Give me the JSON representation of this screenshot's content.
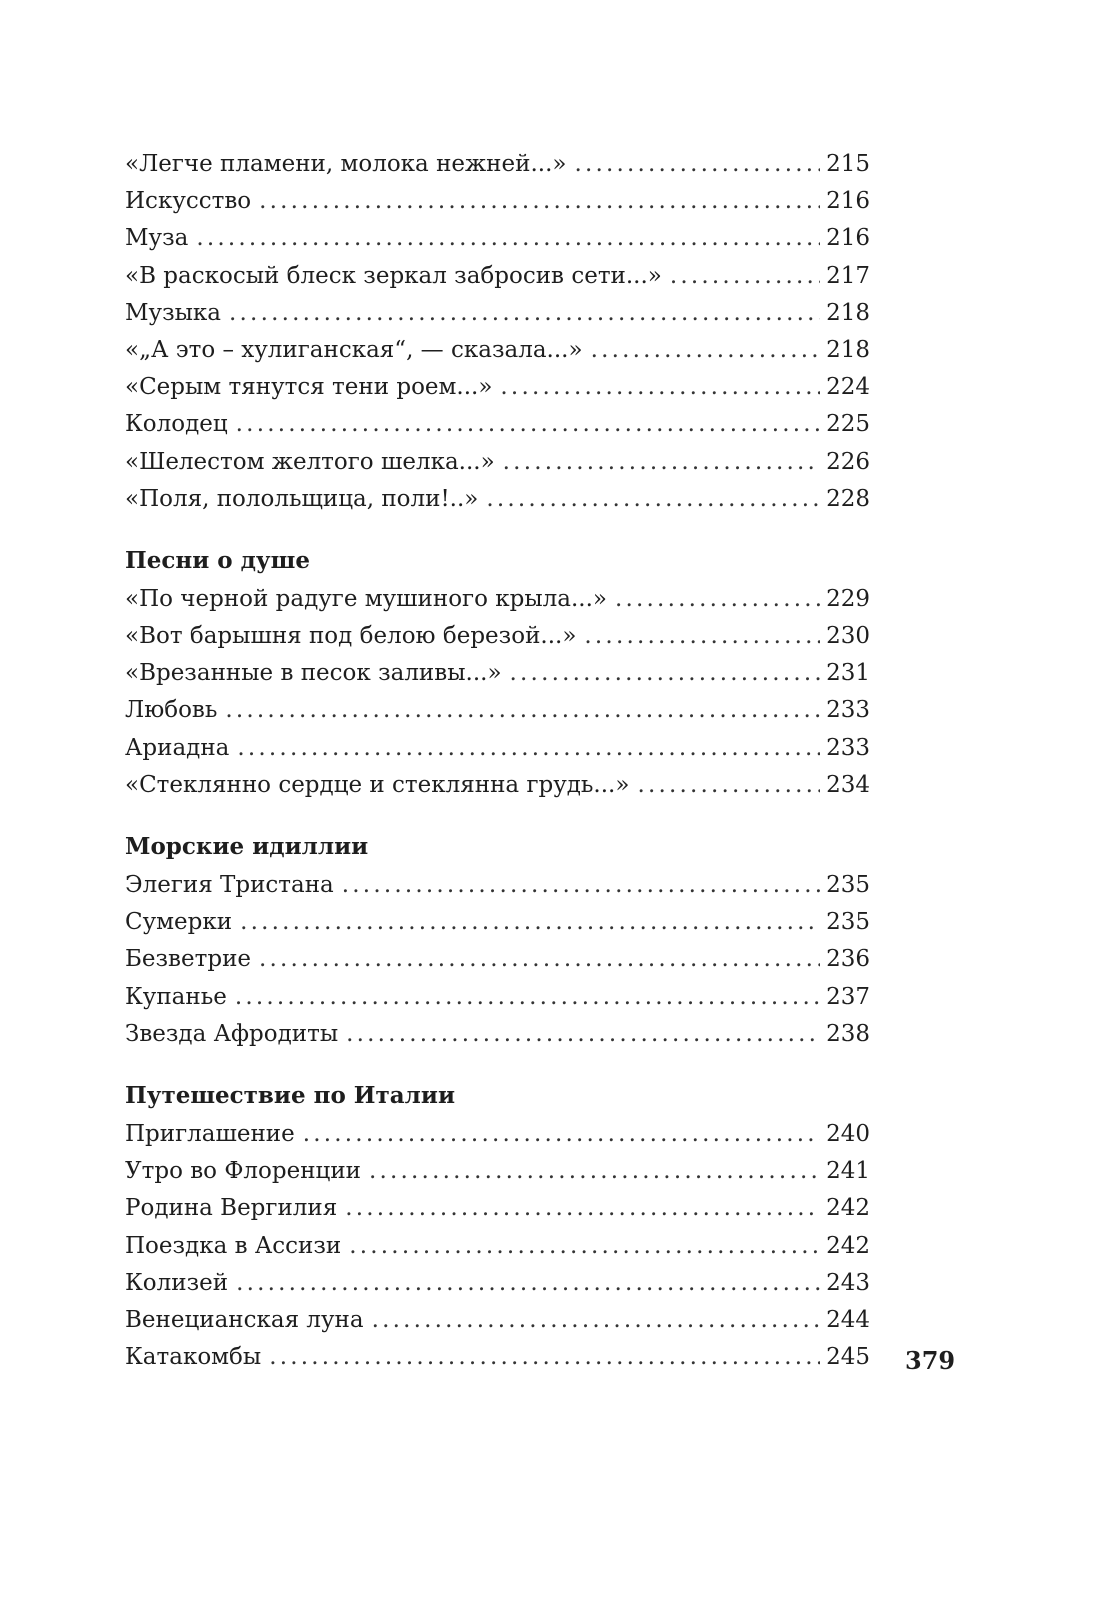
{
  "toc": [
    {
      "items": [
        {
          "title": "«Легче пламени, молока нежней...»",
          "page": "215"
        },
        {
          "title": "Искусство",
          "page": "216"
        },
        {
          "title": "Муза",
          "page": "216"
        },
        {
          "title": "«В раскосый блеск зеркал забросив сети...»",
          "page": "217"
        },
        {
          "title": "Музыка",
          "page": "218"
        },
        {
          "title": "«„А это – хулиганская“, — сказала...»",
          "page": "218"
        },
        {
          "title": "«Серым тянутся тени роем...»",
          "page": "224"
        },
        {
          "title": "Колодец",
          "page": "225"
        },
        {
          "title": "«Шелестом желтого шелка...»",
          "page": "226"
        },
        {
          "title": "«Поля, полольщица, поли!..»",
          "page": "228"
        }
      ]
    },
    {
      "heading": "Песни о душе",
      "items": [
        {
          "title": "«По черной радуге мушиного крыла...»",
          "page": "229"
        },
        {
          "title": "«Вот барышня под белою березой...»",
          "page": "230"
        },
        {
          "title": "«Врезанные в песок заливы...»",
          "page": "231"
        },
        {
          "title": "Любовь",
          "page": "233"
        },
        {
          "title": "Ариадна",
          "page": "233"
        },
        {
          "title": "«Стеклянно сердце и стеклянна грудь...»",
          "page": "234"
        }
      ]
    },
    {
      "heading": "Морские идиллии",
      "items": [
        {
          "title": "Элегия Тристана",
          "page": "235"
        },
        {
          "title": "Сумерки",
          "page": "235"
        },
        {
          "title": "Безветрие",
          "page": "236"
        },
        {
          "title": "Купанье",
          "page": "237"
        },
        {
          "title": "Звезда Афродиты",
          "page": "238"
        }
      ]
    },
    {
      "heading": "Путешествие по Италии",
      "items": [
        {
          "title": "Приглашение",
          "page": "240"
        },
        {
          "title": "Утро во Флоренции",
          "page": "241"
        },
        {
          "title": "Родина Вергилия",
          "page": "242"
        },
        {
          "title": "Поездка в Ассизи",
          "page": "242"
        },
        {
          "title": "Колизей",
          "page": "243"
        },
        {
          "title": "Венецианская луна",
          "page": "244"
        },
        {
          "title": "Катакомбы",
          "page": "245"
        }
      ]
    }
  ],
  "folio": "379"
}
